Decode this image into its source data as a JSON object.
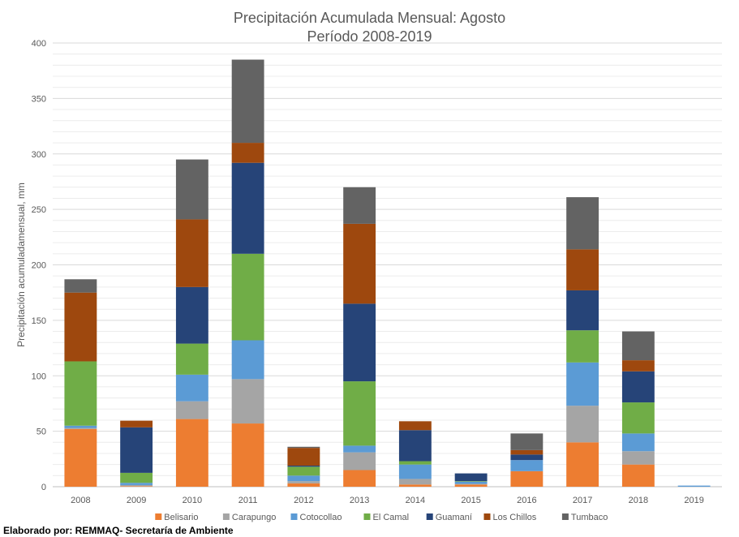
{
  "chart_data": {
    "type": "bar",
    "stacked": true,
    "title": "Precipitación Acumulada Mensual: Agosto",
    "subtitle": "Período 2008-2019",
    "xlabel": "",
    "ylabel": "Precipitación acumuladamensual, mm",
    "ylim": [
      0,
      400
    ],
    "yticks": [
      0,
      50,
      100,
      150,
      200,
      250,
      300,
      350,
      400
    ],
    "grid": true,
    "legend_position": "bottom",
    "categories": [
      "2008",
      "2009",
      "2010",
      "2011",
      "2012",
      "2013",
      "2014",
      "2015",
      "2016",
      "2017",
      "2018",
      "2019"
    ],
    "series": [
      {
        "name": "Belisario",
        "color": "#ED7D31",
        "values": [
          52,
          0.5,
          61,
          57,
          3,
          15,
          2,
          2,
          14,
          40,
          20,
          0
        ]
      },
      {
        "name": "Carapungo",
        "color": "#A5A5A5",
        "values": [
          1,
          1,
          16,
          40,
          2,
          16,
          5,
          0.5,
          0,
          33,
          12,
          0
        ]
      },
      {
        "name": "Cotocollao",
        "color": "#5B9BD5",
        "values": [
          2,
          2,
          24,
          35,
          5,
          6,
          13,
          2,
          10,
          39,
          16,
          1
        ]
      },
      {
        "name": "El Camal",
        "color": "#70AD47",
        "values": [
          58,
          9,
          28,
          78,
          8,
          58,
          3,
          0.5,
          0,
          29,
          28,
          0
        ]
      },
      {
        "name": "Guamaní",
        "color": "#264478",
        "values": [
          0,
          41,
          51,
          82,
          1,
          70,
          28,
          7,
          5,
          36,
          28,
          0
        ]
      },
      {
        "name": "Los Chillos",
        "color": "#9E480E",
        "values": [
          62,
          6,
          61,
          18,
          16,
          72,
          8,
          0,
          4,
          37,
          10,
          0
        ]
      },
      {
        "name": "Tumbaco",
        "color": "#636363",
        "values": [
          12,
          0,
          54,
          75,
          1,
          33,
          0,
          0,
          15,
          47,
          26,
          0
        ]
      }
    ]
  },
  "footer": "Elaborado por: REMMAQ- Secretaría de Ambiente"
}
